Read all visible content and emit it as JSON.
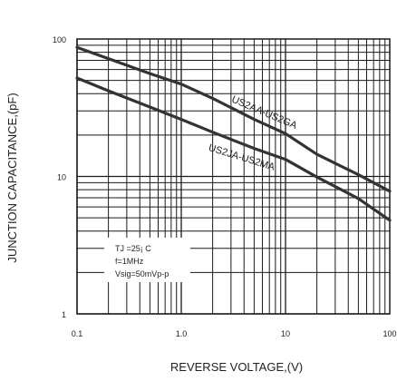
{
  "chart_data": {
    "type": "line",
    "xlabel": "REVERSE VOLTAGE,(V)",
    "ylabel": "JUNCTION CAPACITANCE,(pF)",
    "x_scale": "log",
    "y_scale": "log",
    "xlim": [
      0.1,
      100
    ],
    "ylim": [
      1,
      100
    ],
    "x_ticks": [
      "0.1",
      "1.0",
      "10",
      "100"
    ],
    "y_ticks": [
      "100",
      "10",
      "1"
    ],
    "grid": true,
    "conditions": [
      "TJ =25¡ C",
      "f=1MHz",
      "Vsig=50mVp-p"
    ],
    "series": [
      {
        "name": "US2AA-US2GA",
        "x": [
          0.1,
          0.2,
          0.5,
          1,
          2,
          5,
          10,
          20,
          50,
          100
        ],
        "y": [
          87,
          72,
          56,
          47,
          37,
          26,
          20.5,
          14.5,
          10.3,
          7.8
        ]
      },
      {
        "name": "US2JA-US2MA",
        "x": [
          0.1,
          0.2,
          0.5,
          1,
          2,
          5,
          10,
          20,
          50,
          100
        ],
        "y": [
          52,
          42,
          32,
          26,
          21,
          16,
          13.3,
          9.9,
          6.9,
          4.8
        ]
      }
    ],
    "colors": {
      "line": "#333333",
      "grid": "#1a1a1a",
      "text": "#222222"
    }
  }
}
